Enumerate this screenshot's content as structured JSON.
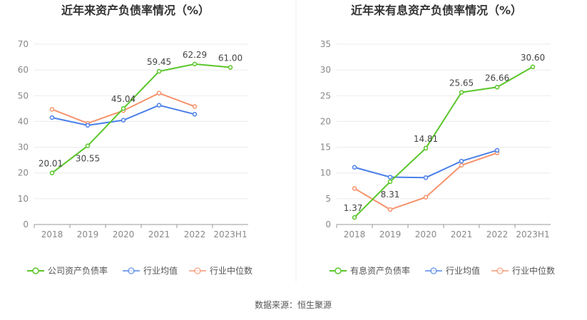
{
  "source": "数据来源：恒生聚源",
  "chart_data": [
    {
      "type": "line",
      "title": "近年来资产负债率情况（%）",
      "categories": [
        "2018",
        "2019",
        "2020",
        "2021",
        "2022",
        "2023H1"
      ],
      "ylim": [
        0,
        70
      ],
      "yticks": [
        0,
        10,
        20,
        30,
        40,
        50,
        60,
        70
      ],
      "grid": true,
      "legend_position": "bottom",
      "series": [
        {
          "name": "公司资产负债率",
          "color": "#5ac629",
          "values": [
            20.01,
            30.55,
            45.04,
            59.45,
            62.29,
            61.0
          ],
          "labels": [
            "20.01",
            "30.55",
            "45.04",
            "59.45",
            "62.29",
            "61.00"
          ]
        },
        {
          "name": "行业均值",
          "color": "#4a7fe8",
          "values": [
            41.5,
            38.5,
            40.5,
            46.3,
            42.8,
            null
          ]
        },
        {
          "name": "行业中位数",
          "color": "#f7936c",
          "values": [
            44.7,
            39.3,
            44.2,
            51.0,
            45.8,
            null
          ]
        }
      ]
    },
    {
      "type": "line",
      "title": "近年来有息资产负债率情况（%）",
      "categories": [
        "2018",
        "2019",
        "2020",
        "2021",
        "2022",
        "2023H1"
      ],
      "ylim": [
        0,
        35
      ],
      "yticks": [
        0,
        5,
        10,
        15,
        20,
        25,
        30,
        35
      ],
      "grid": true,
      "legend_position": "bottom",
      "series": [
        {
          "name": "有息资产负债率",
          "color": "#5ac629",
          "values": [
            1.37,
            8.31,
            14.81,
            25.65,
            26.66,
            30.6
          ],
          "labels": [
            "1.37",
            "8.31",
            "14.81",
            "25.65",
            "26.66",
            "30.60"
          ]
        },
        {
          "name": "行业均值",
          "color": "#4a7fe8",
          "values": [
            11.1,
            9.2,
            9.1,
            12.3,
            14.4,
            null
          ]
        },
        {
          "name": "行业中位数",
          "color": "#f7936c",
          "values": [
            7.0,
            2.9,
            5.3,
            11.5,
            13.9,
            null
          ]
        }
      ]
    }
  ]
}
